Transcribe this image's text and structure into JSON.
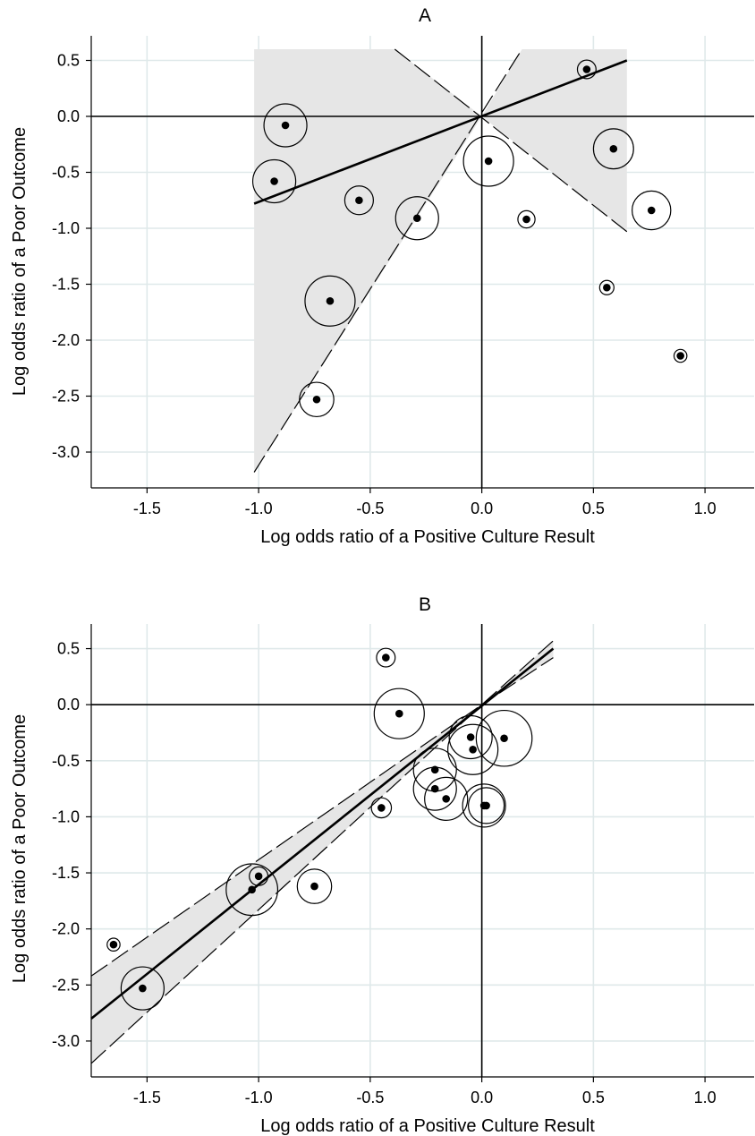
{
  "chart_data": [
    {
      "type": "scatter",
      "title": "A",
      "xlabel": "Log odds ratio of a Positive Culture Result",
      "ylabel": "Log odds ratio of a Poor Outcome",
      "xlim": [
        -1.75,
        1.22
      ],
      "ylim": [
        -3.32,
        0.72
      ],
      "xticks": [
        -1.5,
        -1.0,
        -0.5,
        0.0,
        0.5,
        1.0
      ],
      "yticks": [
        0.5,
        0.0,
        -0.5,
        -1.0,
        -1.5,
        -2.0,
        -2.5,
        -3.0
      ],
      "tick_labels_x": [
        "-1.5",
        "-1.0",
        "-0.5",
        "0.0",
        "0.5",
        "1.0"
      ],
      "tick_labels_y": [
        "0.5",
        "0.0",
        "-0.5",
        "-1.0",
        "-1.5",
        "-2.0",
        "-2.5",
        "-3.0"
      ],
      "grid": true,
      "points": [
        {
          "x": -0.88,
          "y": -0.08,
          "size": 3
        },
        {
          "x": -0.93,
          "y": -0.58,
          "size": 3
        },
        {
          "x": -0.55,
          "y": -0.75,
          "size": 2
        },
        {
          "x": -0.29,
          "y": -0.91,
          "size": 3
        },
        {
          "x": -0.68,
          "y": -1.65,
          "size": 3.5
        },
        {
          "x": -0.74,
          "y": -2.53,
          "size": 2.4
        },
        {
          "x": 0.03,
          "y": -0.4,
          "size": 3.5
        },
        {
          "x": 0.2,
          "y": -0.92,
          "size": 1.2
        },
        {
          "x": 0.47,
          "y": 0.42,
          "size": 1.3
        },
        {
          "x": 0.59,
          "y": -0.29,
          "size": 2.8
        },
        {
          "x": 0.76,
          "y": -0.84,
          "size": 2.7
        },
        {
          "x": 0.56,
          "y": -1.53,
          "size": 1.0
        },
        {
          "x": 0.89,
          "y": -2.14,
          "size": 0.9
        }
      ],
      "fit_line": {
        "x": [
          -1.02,
          0.65
        ],
        "y": [
          -0.78,
          0.5
        ]
      },
      "ci_band": {
        "x_upper_left": [
          -1.02,
          -0.39
        ],
        "y_upper_left": [
          0.6,
          0.6
        ],
        "x_lower_left": [
          -1.02,
          0.0
        ],
        "y_lower_left": [
          -3.18,
          0.0
        ],
        "x_right": [
          0.0,
          0.65
        ],
        "y_right_upper": [
          0.0,
          0.6
        ],
        "y_right_lower": [
          0.0,
          -1.03
        ]
      }
    },
    {
      "type": "scatter",
      "title": "B",
      "xlabel": "Log odds ratio of a Positive Culture Result",
      "ylabel": "Log odds ratio of a Poor Outcome",
      "xlim": [
        -1.75,
        1.22
      ],
      "ylim": [
        -3.32,
        0.72
      ],
      "xticks": [
        -1.5,
        -1.0,
        -0.5,
        0.0,
        0.5,
        1.0
      ],
      "yticks": [
        0.5,
        0.0,
        -0.5,
        -1.0,
        -1.5,
        -2.0,
        -2.5,
        -3.0
      ],
      "tick_labels_x": [
        "-1.5",
        "-1.0",
        "-0.5",
        "0.0",
        "0.5",
        "1.0"
      ],
      "tick_labels_y": [
        "0.5",
        "0.0",
        "-0.5",
        "-1.0",
        "-1.5",
        "-2.0",
        "-2.5",
        "-3.0"
      ],
      "grid": true,
      "points": [
        {
          "x": -0.43,
          "y": 0.42,
          "size": 1.3
        },
        {
          "x": -0.37,
          "y": -0.08,
          "size": 3.5
        },
        {
          "x": -0.05,
          "y": -0.29,
          "size": 3.0
        },
        {
          "x": 0.1,
          "y": -0.3,
          "size": 3.9
        },
        {
          "x": -0.04,
          "y": -0.4,
          "size": 3.5
        },
        {
          "x": -0.21,
          "y": -0.58,
          "size": 3.0
        },
        {
          "x": -0.21,
          "y": -0.75,
          "size": 3.0
        },
        {
          "x": -0.16,
          "y": -0.84,
          "size": 3.0
        },
        {
          "x": -0.45,
          "y": -0.92,
          "size": 1.4
        },
        {
          "x": 0.01,
          "y": -0.9,
          "size": 3.0
        },
        {
          "x": 0.02,
          "y": -0.9,
          "size": 2.5
        },
        {
          "x": -1.0,
          "y": -1.53,
          "size": 1.3
        },
        {
          "x": -1.03,
          "y": -1.65,
          "size": 3.6
        },
        {
          "x": -0.75,
          "y": -1.62,
          "size": 2.4
        },
        {
          "x": -1.65,
          "y": -2.14,
          "size": 0.9
        },
        {
          "x": -1.52,
          "y": -2.53,
          "size": 3.0
        }
      ],
      "fit_line": {
        "x": [
          -1.75,
          0.32
        ],
        "y": [
          -2.8,
          0.5
        ]
      },
      "ci_band": {
        "x": [
          -1.75,
          0.0,
          0.32
        ],
        "y_upper": [
          -2.42,
          0.0,
          0.57
        ],
        "y_lower": [
          -3.2,
          0.0,
          0.42
        ]
      }
    }
  ]
}
